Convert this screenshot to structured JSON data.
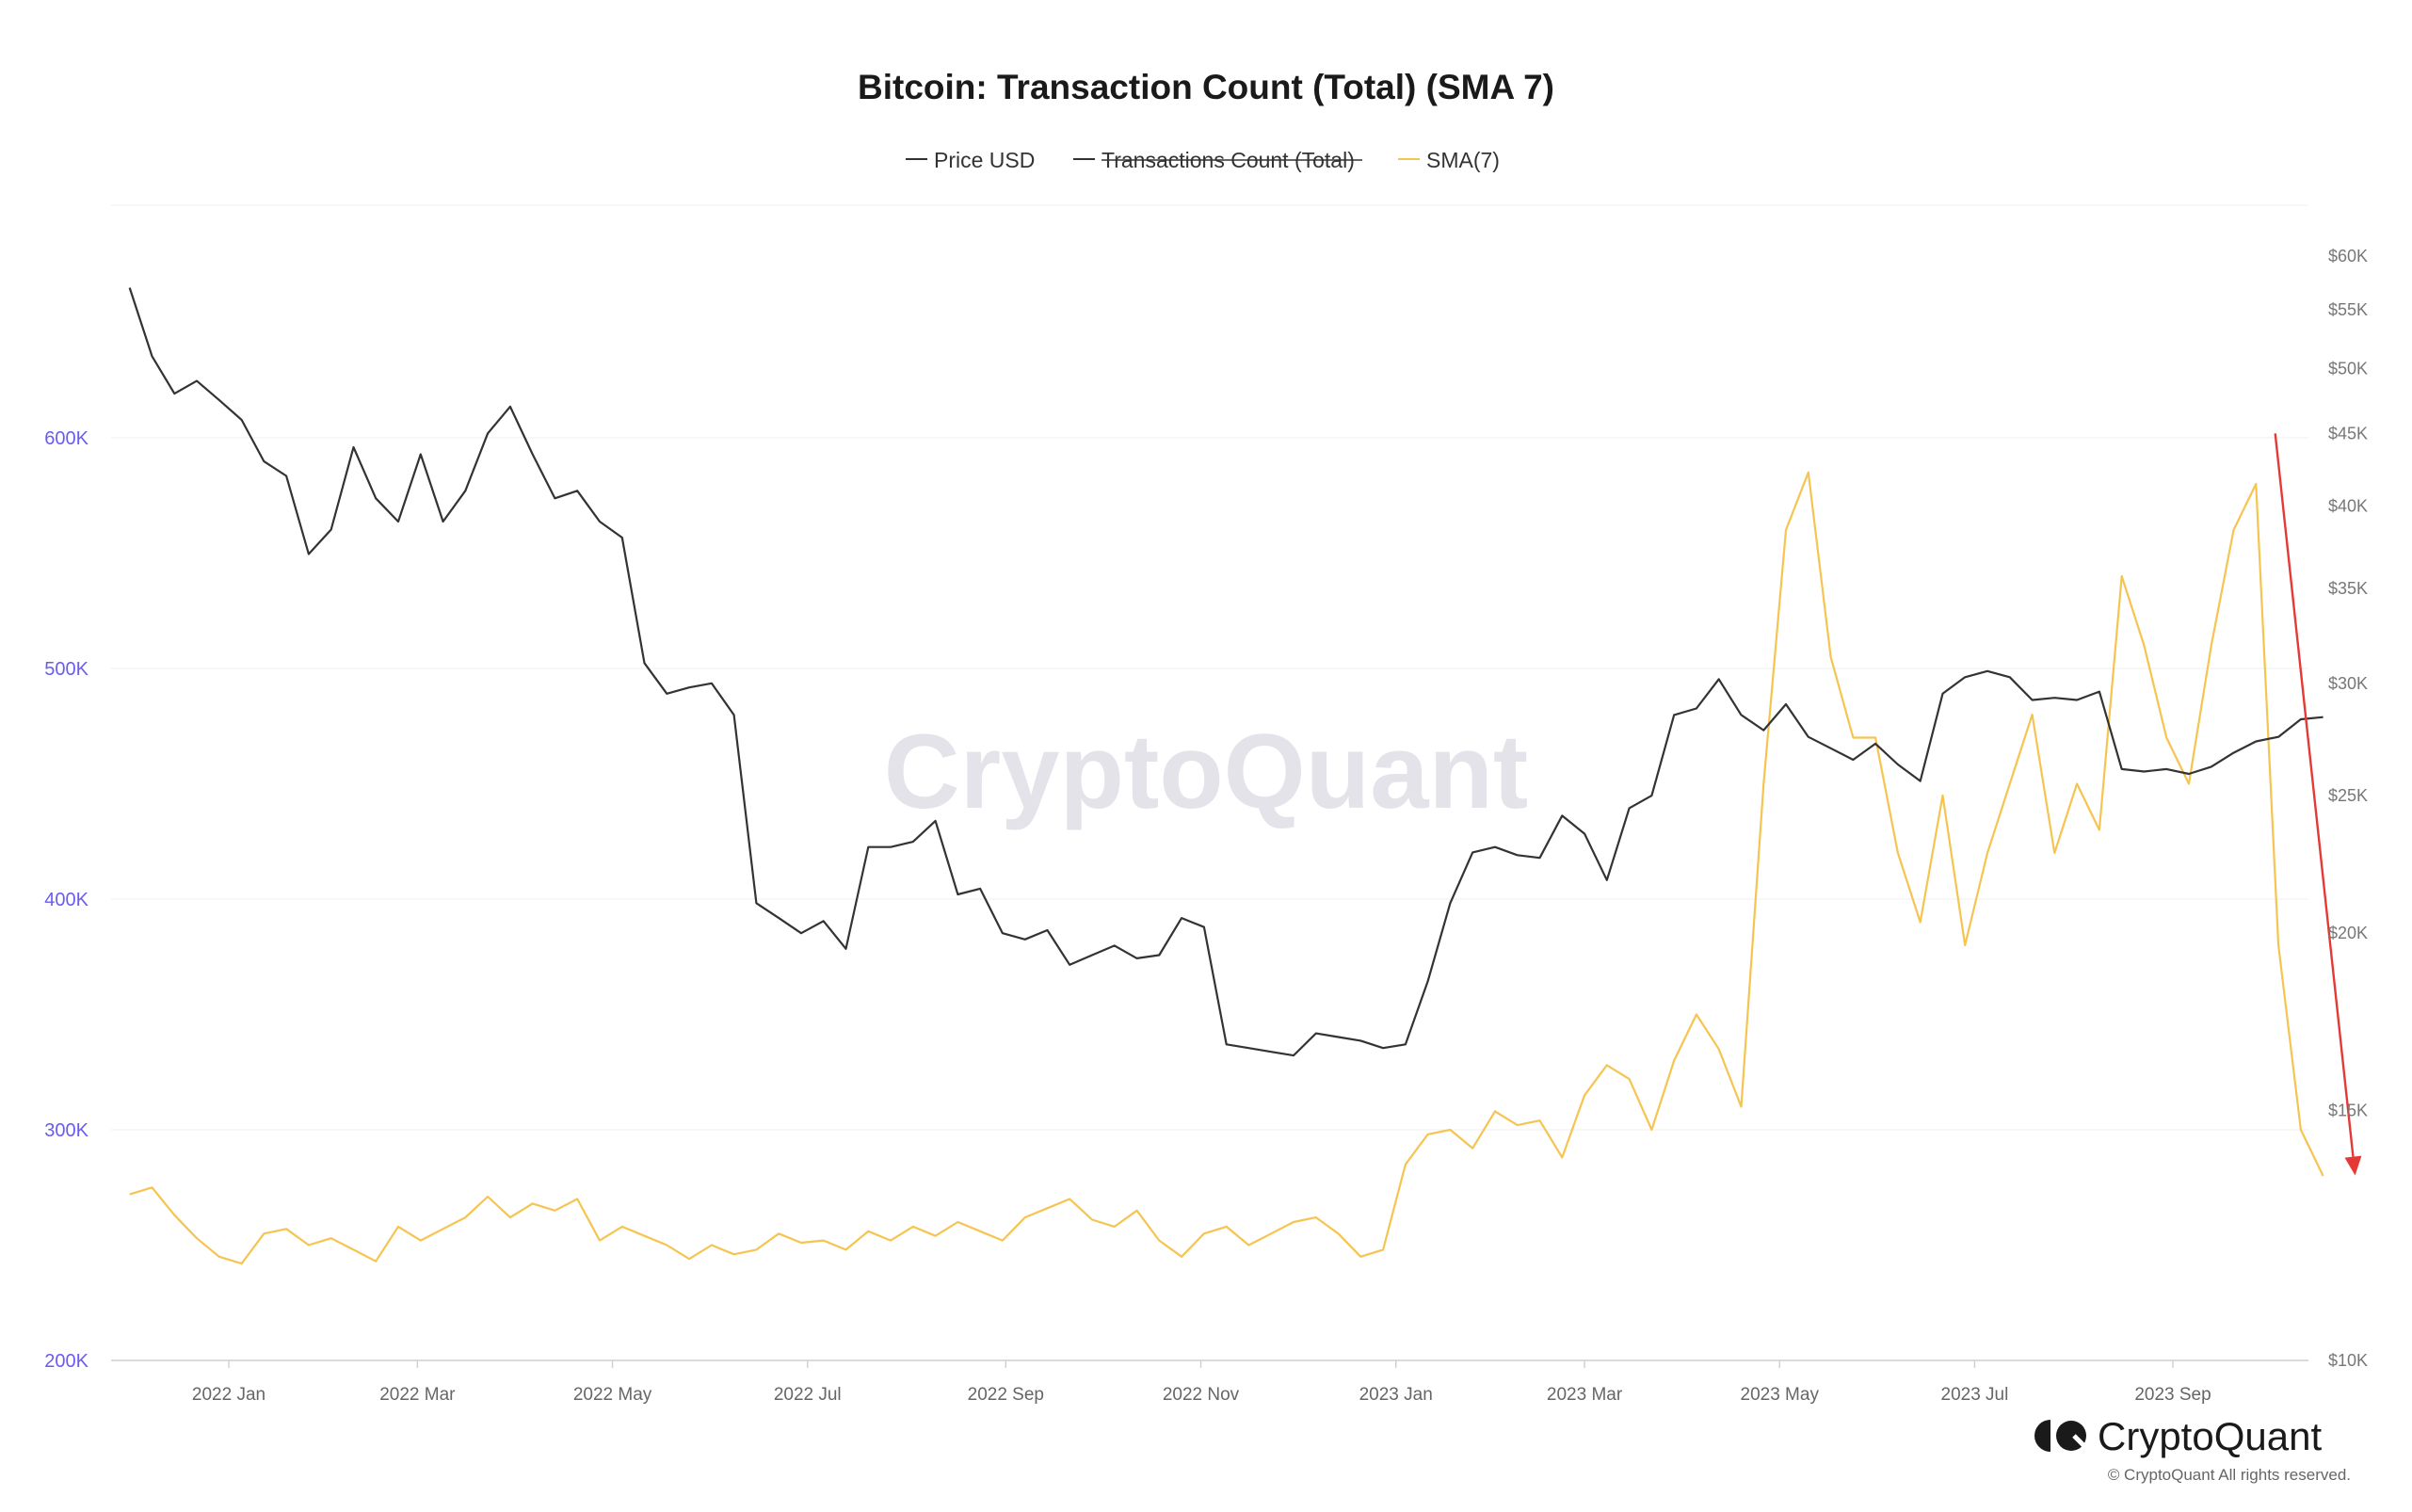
{
  "chart_data": {
    "type": "line",
    "title": "Bitcoin: Transaction Count (Total) (SMA 7)",
    "legend": {
      "placement": "top-center",
      "entries": [
        {
          "name": "Price USD",
          "color": "#333333",
          "hidden": false
        },
        {
          "name": "Transactions Count (Total)",
          "color": "#333333",
          "hidden": true
        },
        {
          "name": "SMA(7)",
          "color": "#f5c451",
          "hidden": false
        }
      ]
    },
    "x_tick_labels": [
      "2022 Jan",
      "2022 Mar",
      "2022 May",
      "2022 Jul",
      "2022 Sep",
      "2022 Nov",
      "2023 Jan",
      "2023 Mar",
      "2023 May",
      "2023 Jul",
      "2023 Sep"
    ],
    "y_left": {
      "tick_labels": [
        "200K",
        "300K",
        "400K",
        "500K",
        "600K"
      ],
      "ticks": [
        200000,
        300000,
        400000,
        500000,
        600000
      ],
      "range": [
        200000,
        700000
      ]
    },
    "y_right": {
      "scale": "log",
      "tick_labels": [
        "$10K",
        "$15K",
        "$20K",
        "$25K",
        "$30K",
        "$35K",
        "$40K",
        "$45K",
        "$50K",
        "$55K",
        "$60K"
      ],
      "ticks": [
        10000,
        15000,
        20000,
        25000,
        30000,
        35000,
        40000,
        45000,
        50000,
        55000,
        60000
      ]
    },
    "grid": "horizontal",
    "series": [
      {
        "name": "Price USD",
        "axis": "right",
        "color": "#333333",
        "x": [
          "2021-12-01",
          "2021-12-08",
          "2021-12-15",
          "2021-12-22",
          "2021-12-29",
          "2022-01-05",
          "2022-01-12",
          "2022-01-19",
          "2022-01-26",
          "2022-02-02",
          "2022-02-09",
          "2022-02-16",
          "2022-02-23",
          "2022-03-02",
          "2022-03-09",
          "2022-03-16",
          "2022-03-23",
          "2022-03-30",
          "2022-04-06",
          "2022-04-13",
          "2022-04-20",
          "2022-04-27",
          "2022-05-04",
          "2022-05-11",
          "2022-05-18",
          "2022-05-25",
          "2022-06-01",
          "2022-06-08",
          "2022-06-15",
          "2022-06-22",
          "2022-06-29",
          "2022-07-06",
          "2022-07-13",
          "2022-07-20",
          "2022-07-27",
          "2022-08-03",
          "2022-08-10",
          "2022-08-17",
          "2022-08-24",
          "2022-08-31",
          "2022-09-07",
          "2022-09-14",
          "2022-09-21",
          "2022-09-28",
          "2022-10-05",
          "2022-10-12",
          "2022-10-19",
          "2022-10-26",
          "2022-11-02",
          "2022-11-09",
          "2022-11-16",
          "2022-11-23",
          "2022-11-30",
          "2022-12-07",
          "2022-12-14",
          "2022-12-21",
          "2022-12-28",
          "2023-01-04",
          "2023-01-11",
          "2023-01-18",
          "2023-01-25",
          "2023-02-01",
          "2023-02-08",
          "2023-02-15",
          "2023-02-22",
          "2023-03-01",
          "2023-03-08",
          "2023-03-15",
          "2023-03-22",
          "2023-03-29",
          "2023-04-05",
          "2023-04-12",
          "2023-04-19",
          "2023-04-26",
          "2023-05-03",
          "2023-05-10",
          "2023-05-17",
          "2023-05-24",
          "2023-05-31",
          "2023-06-07",
          "2023-06-14",
          "2023-06-21",
          "2023-06-28",
          "2023-07-05",
          "2023-07-12",
          "2023-07-19",
          "2023-07-26",
          "2023-08-02",
          "2023-08-09",
          "2023-08-16",
          "2023-08-23",
          "2023-08-30",
          "2023-09-06",
          "2023-09-13",
          "2023-09-20",
          "2023-09-27",
          "2023-10-04",
          "2023-10-11",
          "2023-10-18"
        ],
        "values": [
          57000,
          51000,
          48000,
          49000,
          47500,
          46000,
          43000,
          42000,
          37000,
          38500,
          44000,
          40500,
          39000,
          43500,
          39000,
          41000,
          45000,
          47000,
          43500,
          40500,
          41000,
          39000,
          38000,
          31000,
          29500,
          29800,
          30000,
          28500,
          21000,
          20500,
          20000,
          20400,
          19500,
          23000,
          23000,
          23200,
          24000,
          21300,
          21500,
          20000,
          19800,
          20100,
          19000,
          19300,
          19600,
          19200,
          19300,
          20500,
          20200,
          16700,
          16600,
          16500,
          16400,
          17000,
          16900,
          16800,
          16600,
          16700,
          18500,
          21000,
          22800,
          23000,
          22700,
          22600,
          24200,
          23500,
          21800,
          24500,
          25000,
          28500,
          28800,
          30200,
          28500,
          27800,
          29000,
          27500,
          27000,
          26500,
          27200,
          26300,
          25600,
          29500,
          30300,
          30600,
          30300,
          29200,
          29300,
          29200,
          29600,
          26100,
          26000,
          26100,
          25900,
          26200,
          26800,
          27300,
          27500,
          28300,
          28400
        ],
        "values_source_note": "Price USD as read from the right (log) axis"
      },
      {
        "name": "SMA(7)",
        "axis": "left",
        "color": "#f5c451",
        "x": [
          "2021-12-01",
          "2021-12-08",
          "2021-12-15",
          "2021-12-22",
          "2021-12-29",
          "2022-01-05",
          "2022-01-12",
          "2022-01-19",
          "2022-01-26",
          "2022-02-02",
          "2022-02-09",
          "2022-02-16",
          "2022-02-23",
          "2022-03-02",
          "2022-03-09",
          "2022-03-16",
          "2022-03-23",
          "2022-03-30",
          "2022-04-06",
          "2022-04-13",
          "2022-04-20",
          "2022-04-27",
          "2022-05-04",
          "2022-05-11",
          "2022-05-18",
          "2022-05-25",
          "2022-06-01",
          "2022-06-08",
          "2022-06-15",
          "2022-06-22",
          "2022-06-29",
          "2022-07-06",
          "2022-07-13",
          "2022-07-20",
          "2022-07-27",
          "2022-08-03",
          "2022-08-10",
          "2022-08-17",
          "2022-08-24",
          "2022-08-31",
          "2022-09-07",
          "2022-09-14",
          "2022-09-21",
          "2022-09-28",
          "2022-10-05",
          "2022-10-12",
          "2022-10-19",
          "2022-10-26",
          "2022-11-02",
          "2022-11-09",
          "2022-11-16",
          "2022-11-23",
          "2022-11-30",
          "2022-12-07",
          "2022-12-14",
          "2022-12-21",
          "2022-12-28",
          "2023-01-04",
          "2023-01-11",
          "2023-01-18",
          "2023-01-25",
          "2023-02-01",
          "2023-02-08",
          "2023-02-15",
          "2023-02-22",
          "2023-03-01",
          "2023-03-08",
          "2023-03-15",
          "2023-03-22",
          "2023-03-29",
          "2023-04-05",
          "2023-04-12",
          "2023-04-19",
          "2023-04-26",
          "2023-05-03",
          "2023-05-10",
          "2023-05-17",
          "2023-05-24",
          "2023-05-31",
          "2023-06-07",
          "2023-06-14",
          "2023-06-21",
          "2023-06-28",
          "2023-07-05",
          "2023-07-12",
          "2023-07-19",
          "2023-07-26",
          "2023-08-02",
          "2023-08-09",
          "2023-08-16",
          "2023-08-23",
          "2023-08-30",
          "2023-09-06",
          "2023-09-13",
          "2023-09-20",
          "2023-09-27",
          "2023-10-04",
          "2023-10-11",
          "2023-10-18"
        ],
        "values": [
          272000,
          275000,
          263000,
          253000,
          245000,
          242000,
          255000,
          257000,
          250000,
          253000,
          248000,
          243000,
          258000,
          252000,
          257000,
          262000,
          271000,
          262000,
          268000,
          265000,
          270000,
          252000,
          258000,
          254000,
          250000,
          244000,
          250000,
          246000,
          248000,
          255000,
          251000,
          252000,
          248000,
          256000,
          252000,
          258000,
          254000,
          260000,
          256000,
          252000,
          262000,
          266000,
          270000,
          261000,
          258000,
          265000,
          252000,
          245000,
          255000,
          258000,
          250000,
          255000,
          260000,
          262000,
          255000,
          245000,
          248000,
          285000,
          298000,
          300000,
          292000,
          308000,
          302000,
          304000,
          288000,
          315000,
          328000,
          322000,
          300000,
          330000,
          350000,
          335000,
          310000,
          450000,
          560000,
          585000,
          505000,
          470000,
          470000,
          420000,
          390000,
          445000,
          380000,
          420000,
          450000,
          480000,
          420000,
          450000,
          430000,
          540000,
          510000,
          470000,
          450000,
          510000,
          560000,
          580000,
          380000,
          300000,
          280000
        ]
      }
    ],
    "annotations": [
      {
        "type": "arrow",
        "color": "#e53935",
        "from": {
          "x": "2023-10-03",
          "y_right": 45000
        },
        "to": {
          "x": "2023-10-28",
          "y_right": 13500
        }
      }
    ],
    "watermark": "CryptoQuant",
    "brand": "CryptoQuant",
    "copyright": "© CryptoQuant All rights reserved."
  }
}
